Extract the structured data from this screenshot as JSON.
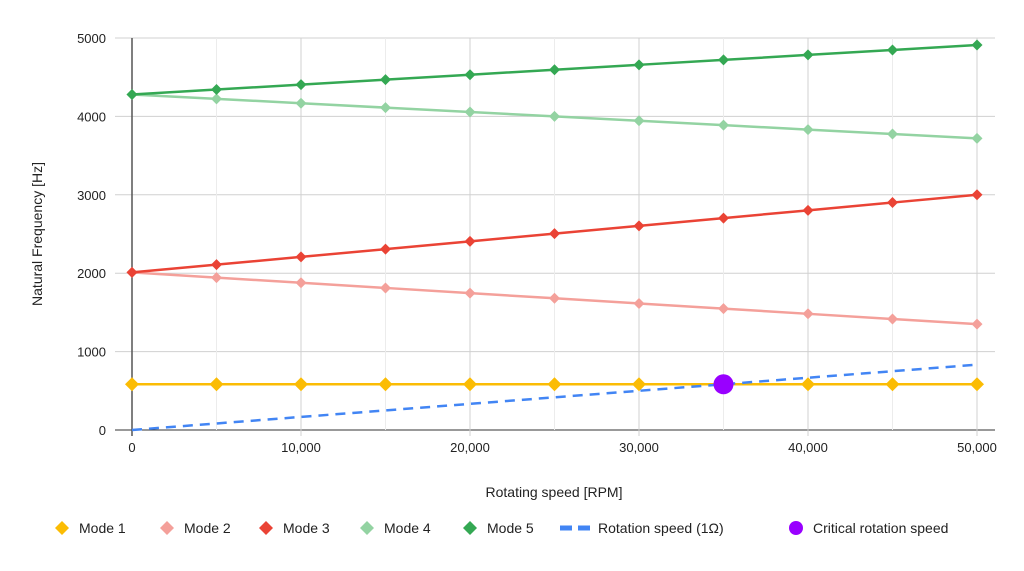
{
  "chart_data": {
    "type": "line",
    "title": "",
    "xlabel": "Rotating speed [RPM]",
    "ylabel": "Natural Frequency [Hz]",
    "xlim": [
      0,
      50000
    ],
    "ylim": [
      0,
      5000
    ],
    "grid": true,
    "legend_position": "bottom",
    "x_ticks": [
      "0",
      "10,000",
      "20,000",
      "30,000",
      "40,000",
      "50,000"
    ],
    "y_ticks": [
      "0",
      "1000",
      "2000",
      "3000",
      "4000",
      "5000"
    ],
    "x": [
      0,
      5000,
      10000,
      15000,
      20000,
      25000,
      30000,
      35000,
      40000,
      45000,
      50000
    ],
    "series": [
      {
        "name": "Mode 1",
        "color": "#fbbc04",
        "marker": "diamond",
        "values": [
          583,
          583,
          583,
          583,
          583,
          583,
          583,
          583,
          583,
          583,
          583
        ]
      },
      {
        "name": "Mode 2",
        "color": "#f4a09a",
        "marker": "diamond",
        "values": [
          2010,
          1944,
          1878,
          1812,
          1746,
          1680,
          1614,
          1548,
          1482,
          1416,
          1350
        ]
      },
      {
        "name": "Mode 3",
        "color": "#ea4335",
        "marker": "diamond",
        "values": [
          2010,
          2109,
          2208,
          2307,
          2406,
          2505,
          2604,
          2703,
          2802,
          2901,
          3000
        ]
      },
      {
        "name": "Mode 4",
        "color": "#93d3a2",
        "marker": "diamond",
        "values": [
          4280,
          4224,
          4168,
          4112,
          4056,
          4000,
          3944,
          3888,
          3832,
          3776,
          3720
        ]
      },
      {
        "name": "Mode 5",
        "color": "#34a853",
        "marker": "diamond",
        "values": [
          4280,
          4343,
          4406,
          4469,
          4532,
          4595,
          4658,
          4721,
          4784,
          4847,
          4910
        ]
      },
      {
        "name": "Rotation speed (1Ω)",
        "color": "#4285f4",
        "dashed": true,
        "marker": "none",
        "values": [
          0,
          83.3,
          166.7,
          250,
          333.3,
          416.7,
          500,
          583.3,
          666.7,
          750,
          833.3
        ]
      },
      {
        "name": "Critical rotation speed",
        "color": "#9900ff",
        "marker": "circle",
        "points": [
          [
            35000,
            583
          ]
        ]
      }
    ]
  }
}
